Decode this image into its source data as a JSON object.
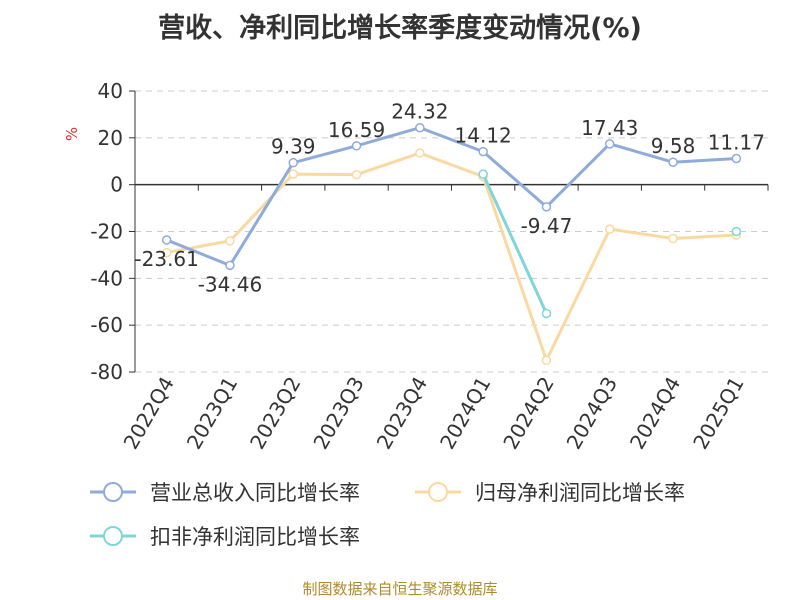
{
  "title": "营收、净利同比增长率季度变动情况(%)",
  "source_note": "制图数据来自恒生聚源数据库",
  "chart_data": {
    "type": "line",
    "title": "营收、净利同比增长率季度变动情况(%)",
    "ylabel": "%",
    "xlabel": "",
    "ylim": [
      -80,
      40
    ],
    "yticks": [
      40,
      20,
      0,
      -20,
      -40,
      -60,
      -80
    ],
    "grid": true,
    "legend_position": "bottom",
    "categories": [
      "2022Q4",
      "2023Q1",
      "2023Q2",
      "2023Q3",
      "2023Q4",
      "2024Q1",
      "2024Q2",
      "2024Q3",
      "2024Q4",
      "2025Q1"
    ],
    "series": [
      {
        "name": "营业总收入同比增长率",
        "color": "#8fabd9",
        "values": [
          -23.61,
          -34.46,
          9.39,
          16.59,
          24.32,
          14.12,
          -9.47,
          17.43,
          9.58,
          11.17
        ],
        "labels": [
          "-23.61",
          "-34.46",
          "9.39",
          "16.59",
          "24.32",
          "14.12",
          "-9.47",
          "17.43",
          "9.58",
          "11.17"
        ]
      },
      {
        "name": "归母净利润同比增长率",
        "color": "#f9d9a1",
        "values": [
          -29,
          -24,
          4.5,
          4.3,
          13.5,
          3.5,
          -75,
          -19,
          -23,
          -21.5
        ]
      },
      {
        "name": "扣非净利润同比增长率",
        "color": "#7fd6d6",
        "values": [
          null,
          null,
          null,
          null,
          null,
          4.5,
          -55,
          null,
          null,
          -20
        ]
      }
    ]
  }
}
